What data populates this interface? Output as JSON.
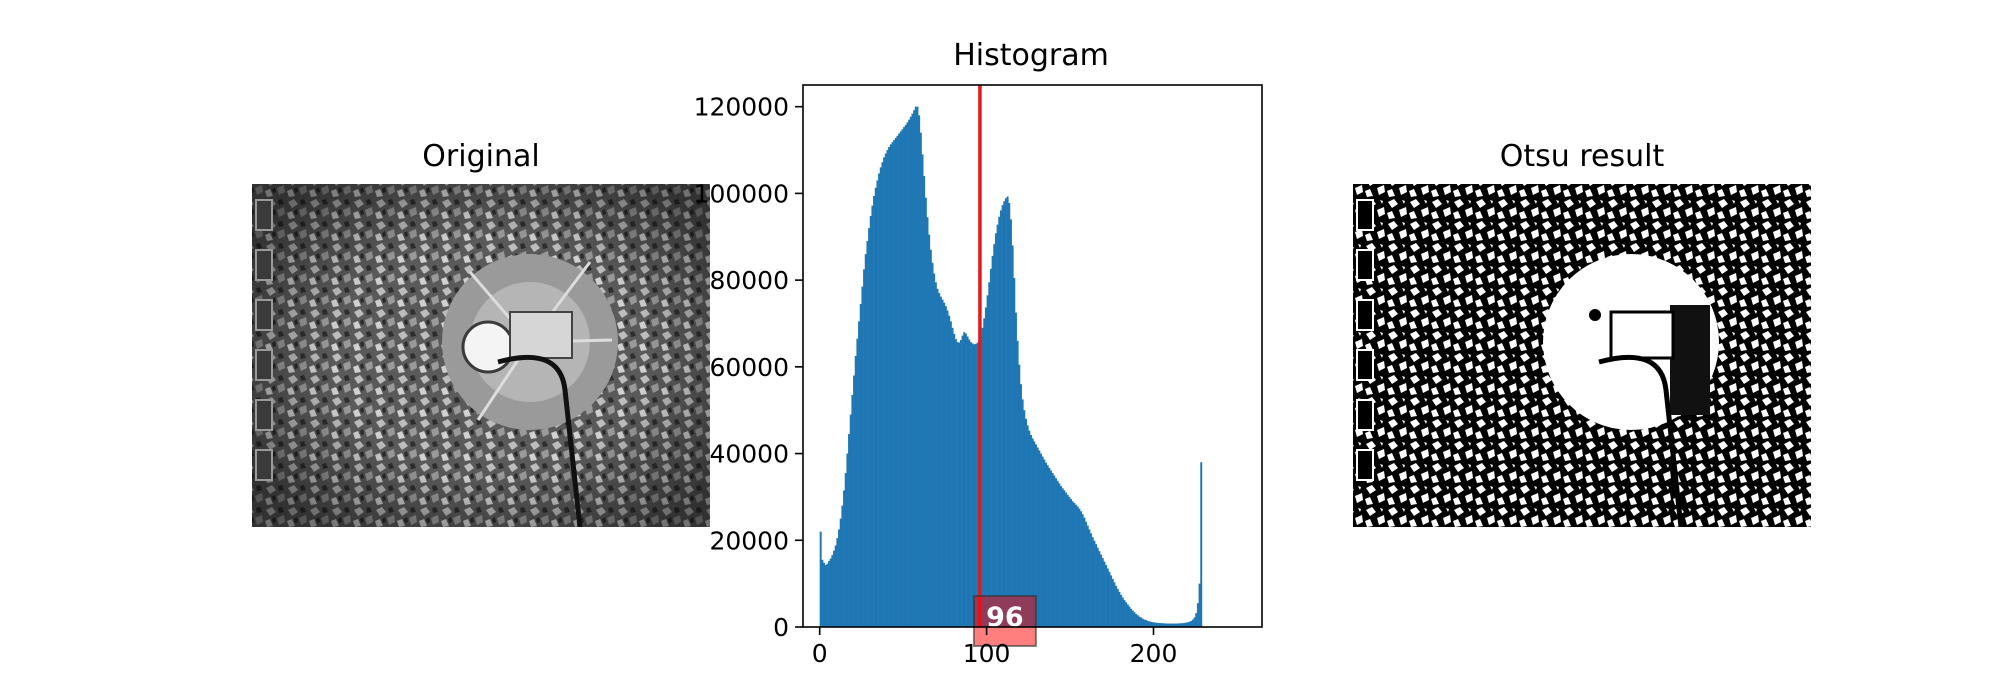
{
  "panels": {
    "left_title": "Original",
    "right_title": "Otsu result"
  },
  "chart_data": {
    "type": "bar",
    "title": "Histogram",
    "xlabel": "",
    "ylabel": "",
    "xlim": [
      -10,
      265
    ],
    "ylim": [
      0,
      125000
    ],
    "x_ticks": [
      0,
      100,
      200
    ],
    "x_tick_labels": [
      "0",
      "100",
      "200"
    ],
    "y_ticks": [
      0,
      20000,
      40000,
      60000,
      80000,
      100000,
      120000
    ],
    "y_tick_labels": [
      "0",
      "20000",
      "40000",
      "60000",
      "80000",
      "100000",
      "120000"
    ],
    "bar_color": "#1f77b4",
    "grid": false,
    "threshold": {
      "value": 96,
      "label": "96",
      "color": "#e31a1c"
    },
    "bins": {
      "start": 0,
      "width": 1
    },
    "values": [
      22000,
      15500,
      14800,
      14300,
      14600,
      15200,
      15800,
      16600,
      17600,
      18800,
      20500,
      22500,
      25000,
      28000,
      31500,
      35500,
      40000,
      44500,
      49000,
      53500,
      58000,
      62500,
      66500,
      70500,
      74500,
      78500,
      82500,
      86000,
      89000,
      92000,
      94800,
      97200,
      99400,
      101300,
      103000,
      104600,
      106000,
      107200,
      108300,
      109200,
      110000,
      110700,
      111300,
      111800,
      112300,
      112800,
      113300,
      113800,
      114300,
      114800,
      115300,
      115800,
      116400,
      117000,
      117700,
      118400,
      119200,
      120000,
      120000,
      118000,
      114000,
      109000,
      104000,
      99000,
      94500,
      90500,
      87000,
      84000,
      81500,
      79500,
      78000,
      77000,
      76200,
      75500,
      74800,
      74000,
      73000,
      71800,
      70500,
      69000,
      67600,
      66400,
      65700,
      65600,
      66200,
      67200,
      68000,
      67700,
      67000,
      66300,
      65700,
      65400,
      65200,
      65300,
      65600,
      66000,
      67300,
      69000,
      71200,
      73700,
      76500,
      79500,
      82600,
      85600,
      88300,
      90800,
      92800,
      94600,
      96100,
      97300,
      98200,
      98900,
      99300,
      97800,
      94000,
      88000,
      80500,
      72500,
      66000,
      60500,
      56000,
      52500,
      50000,
      48000,
      46500,
      45300,
      44300,
      43500,
      42800,
      42100,
      41400,
      40700,
      40000,
      39300,
      38600,
      37900,
      37300,
      36700,
      36100,
      35500,
      34900,
      34300,
      33700,
      33100,
      32500,
      32000,
      31500,
      31000,
      30500,
      30000,
      29500,
      29000,
      28600,
      28200,
      27800,
      27300,
      26700,
      26000,
      25200,
      24300,
      23400,
      22500,
      21600,
      20700,
      19900,
      19100,
      18300,
      17500,
      16700,
      15900,
      15100,
      14300,
      13500,
      12700,
      11900,
      11100,
      10300,
      9500,
      8800,
      8100,
      7400,
      6800,
      6200,
      5700,
      5200,
      4700,
      4200,
      3800,
      3400,
      3000,
      2700,
      2400,
      2200,
      1900,
      1700,
      1600,
      1400,
      1300,
      1200,
      1100,
      1050,
      1000,
      950,
      900,
      900,
      850,
      850,
      800,
      800,
      800,
      800,
      800,
      800,
      800,
      800,
      850,
      850,
      900,
      950,
      1000,
      1100,
      1200,
      1400,
      1700,
      2200,
      3200,
      5500,
      10000,
      38000
    ]
  }
}
